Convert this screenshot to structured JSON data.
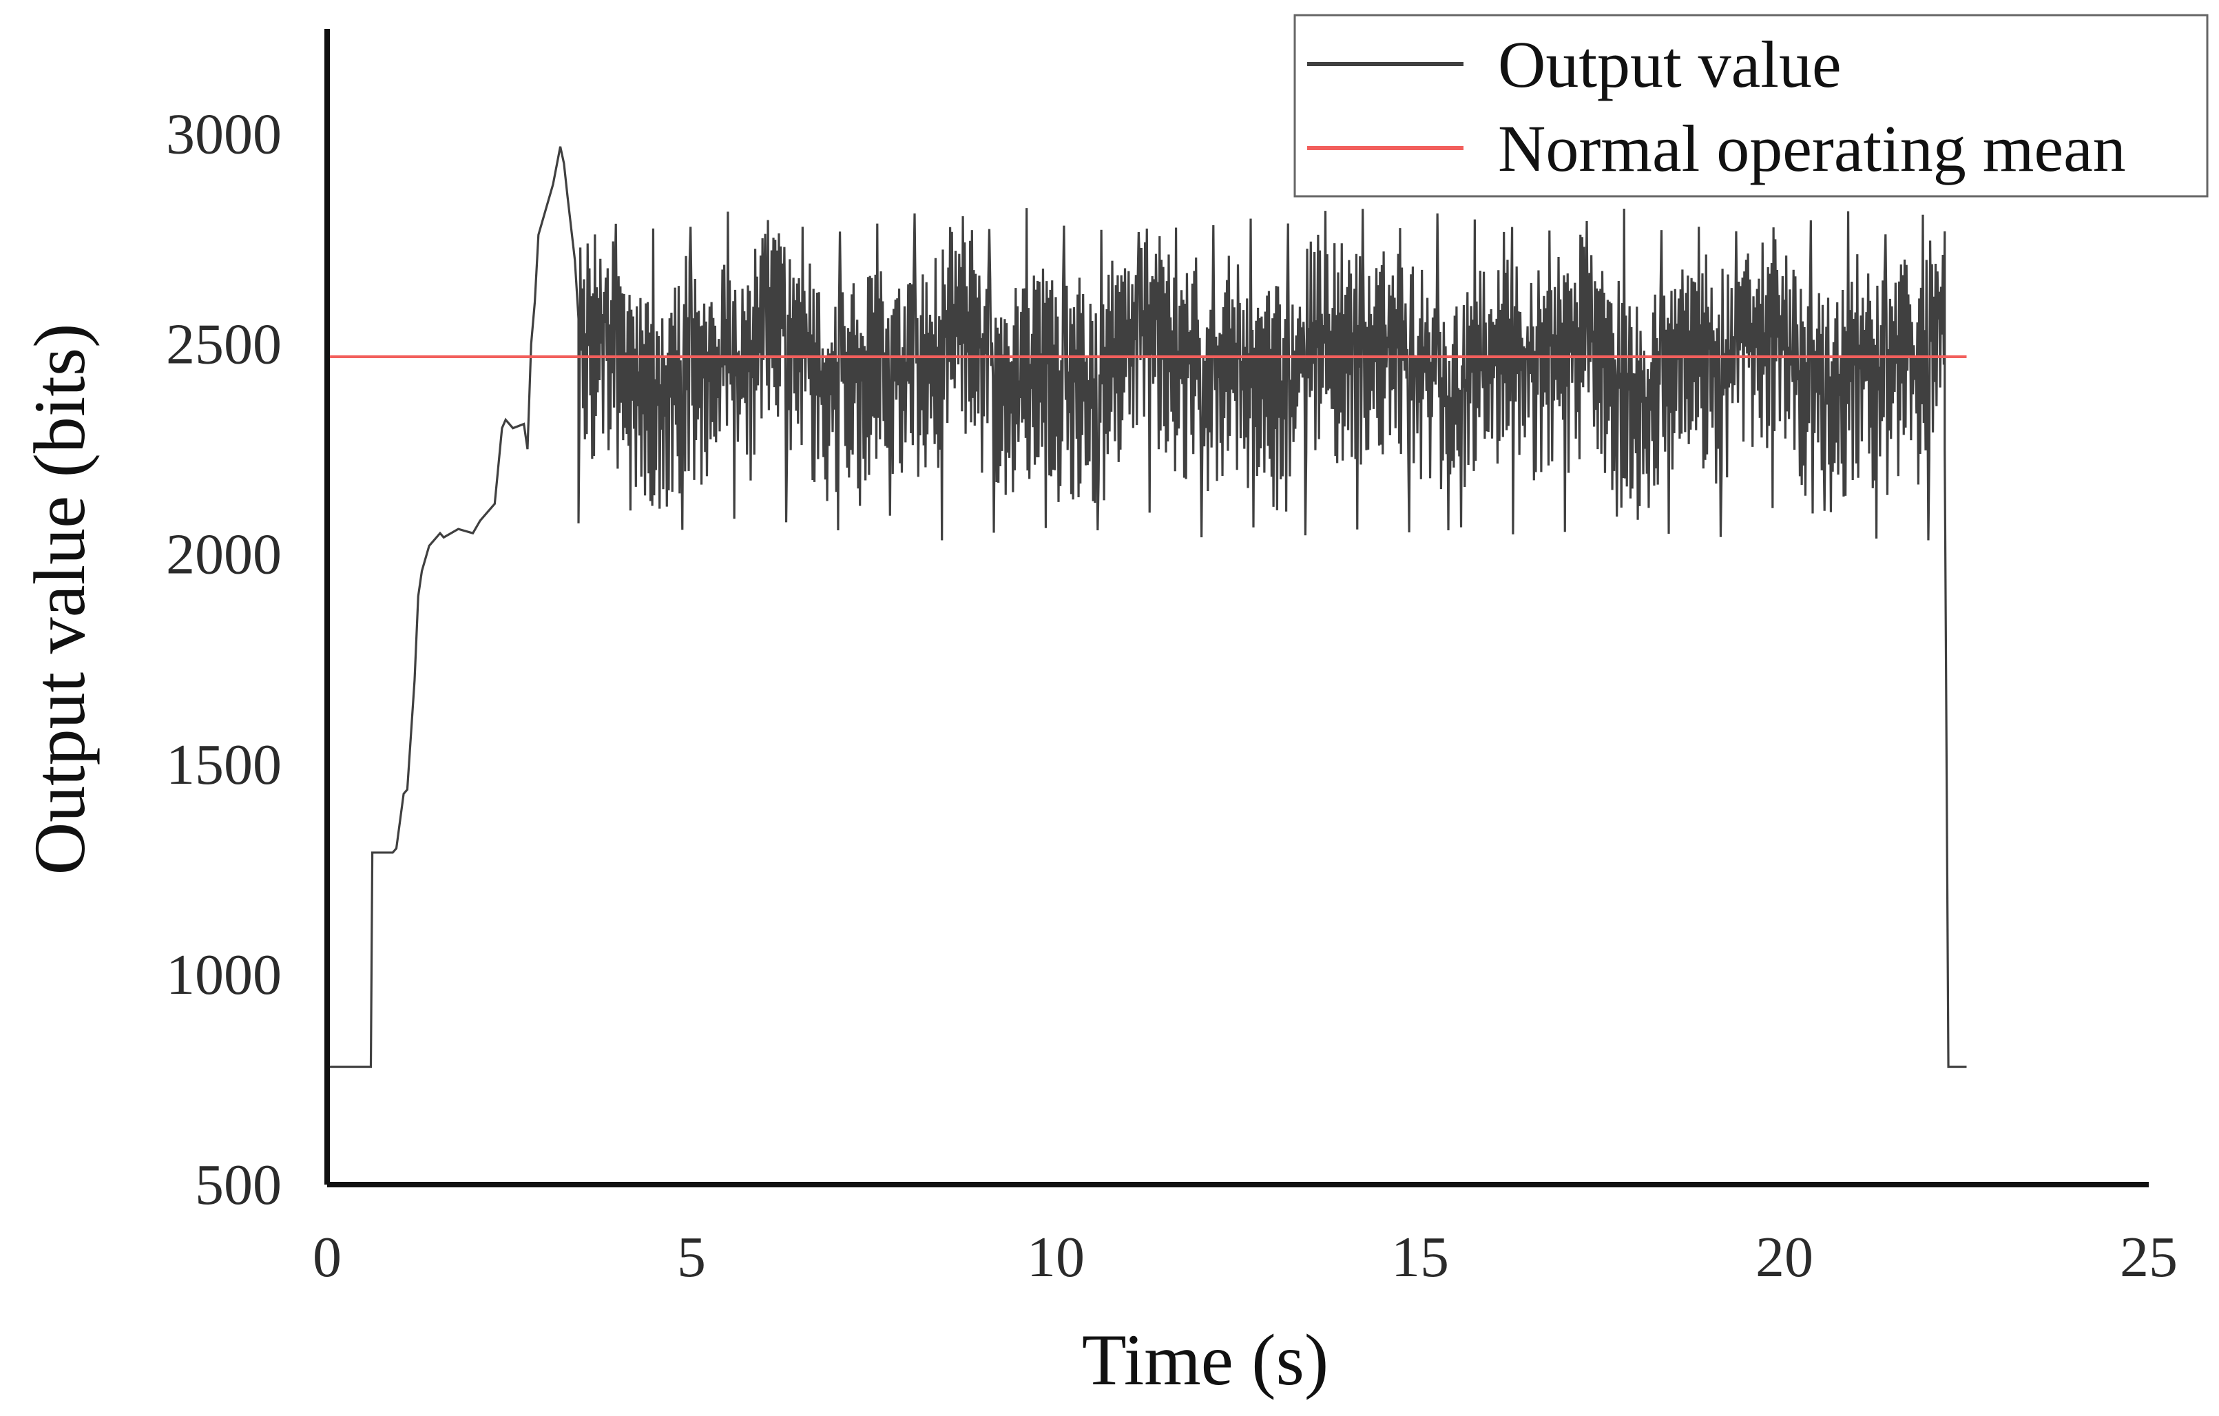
{
  "chart_data": {
    "type": "line",
    "title": "",
    "xlabel": "Time (s)",
    "ylabel": "Output value (bits)",
    "xlim": [
      0,
      25
    ],
    "ylim": [
      500,
      3250
    ],
    "xticks": [
      0,
      5,
      10,
      15,
      20,
      25
    ],
    "yticks": [
      500,
      1000,
      1500,
      2000,
      2500,
      3000
    ],
    "xtick_labels": [
      "0",
      "5",
      "10",
      "15",
      "20",
      "25"
    ],
    "ytick_labels": [
      "500",
      "1000",
      "1500",
      "2000",
      "2500",
      "3000"
    ],
    "grid": false,
    "legend_position": "top-right",
    "series": [
      {
        "name": "Output value",
        "color": "#404040",
        "segments": [
          {
            "kind": "points",
            "x": [
              0,
              0.6,
              0.62,
              0.9,
              0.95,
              1.05,
              1.1,
              1.2,
              1.25,
              1.3,
              1.4,
              1.55,
              1.6,
              1.8,
              2.0,
              2.1,
              2.2,
              2.3,
              2.4,
              2.45,
              2.55,
              2.7,
              2.75,
              2.8,
              2.85,
              2.9,
              3.0,
              3.1,
              3.2,
              3.25,
              3.3,
              3.4,
              3.45
            ],
            "y": [
              780,
              780,
              1290,
              1290,
              1300,
              1430,
              1440,
              1700,
              1900,
              1960,
              2020,
              2050,
              2040,
              2060,
              2050,
              2080,
              2100,
              2120,
              2300,
              2320,
              2300,
              2310,
              2250,
              2500,
              2600,
              2760,
              2820,
              2880,
              2970,
              2930,
              2850,
              2700,
              2560
            ]
          },
          {
            "kind": "noise",
            "x_start": 3.45,
            "x_end": 22.2,
            "mean": 2470,
            "spread": 230,
            "min": 2030,
            "max": 2830,
            "note": "dense high-frequency oscillation about the mean"
          },
          {
            "kind": "points",
            "x": [
              22.2,
              22.25,
              22.3,
              22.5
            ],
            "y": [
              2250,
              780,
              780,
              780
            ]
          }
        ]
      },
      {
        "name": "Normal operating mean",
        "color": "#f25f5c",
        "x": [
          0,
          22.5
        ],
        "y": [
          2470,
          2470
        ]
      }
    ]
  }
}
